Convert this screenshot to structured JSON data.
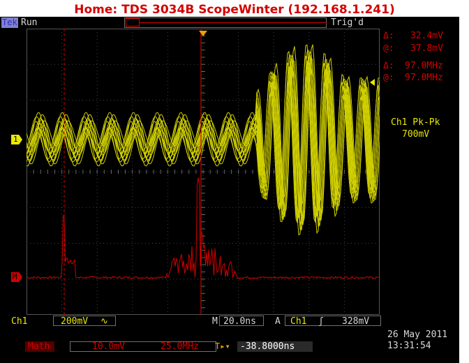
{
  "title": "Home:  TDS 3034B  ScopeWinter  (192.168.1.241)",
  "status": {
    "brand": "Tek",
    "run_state": "Run",
    "trigger_state": "Trig'd"
  },
  "cursors": {
    "amp_delta_label": "Δ:",
    "amp_delta_value": "32.4mV",
    "amp_at_label": "@:",
    "amp_at_value": "37.8mV",
    "freq_delta_label": "Δ:",
    "freq_delta_value": "97.0MHz",
    "freq_at_label": "@:",
    "freq_at_value": "97.0MHz"
  },
  "measurement": {
    "label": "Ch1 Pk-Pk",
    "value": "700mV"
  },
  "markers": {
    "ch1": "1",
    "math": "M"
  },
  "bottom": {
    "ch1_label": "Ch1",
    "ch1_scale": "200mV",
    "ch1_coupling": "∿",
    "time_prefix": "M",
    "time_scale": "20.0ns",
    "trig_prefix": "A",
    "trig_source": "Ch1",
    "trig_slope": "ʃ",
    "trig_level": "328mV",
    "math_label": "Math",
    "math_scale": "10.0mV",
    "math_freq": "25.0MHz",
    "delay_icon": "T▸▾",
    "delay_value": "-38.8000ns",
    "date": "26 May 2011",
    "time": "13:31:54"
  },
  "colors": {
    "ch1": "#e8e800",
    "math": "#d20000",
    "title": "#d40000",
    "background": "#000000",
    "graticule": "#555555"
  }
}
